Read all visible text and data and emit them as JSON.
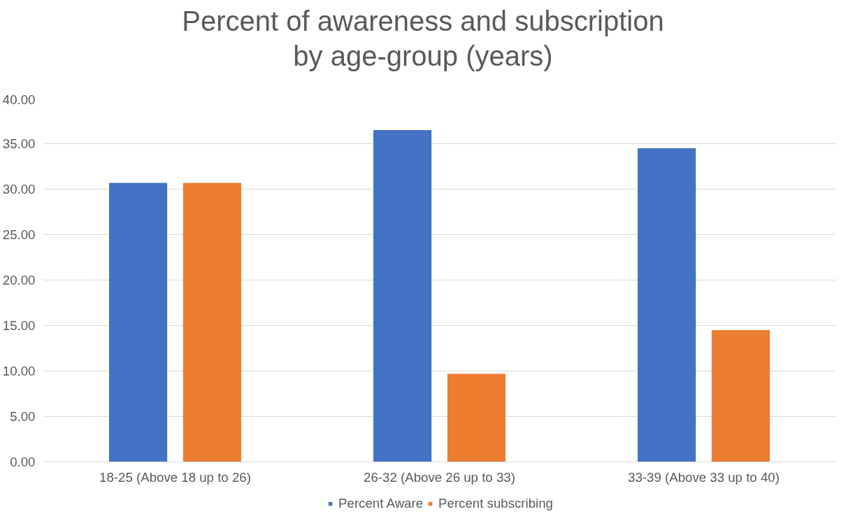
{
  "chart_data": {
    "type": "bar",
    "title": "Percent of awareness and subscription by age-group (years)",
    "categories": [
      "18-25 (Above 18 up to 26)",
      "26-32 (Above 26 up to 33)",
      "33-39 (Above 33 up to 40)"
    ],
    "series": [
      {
        "name": "Percent Aware",
        "color": "#4472c4",
        "values": [
          30.7,
          36.5,
          34.5
        ]
      },
      {
        "name": "Percent subscribing",
        "color": "#ed7d31",
        "values": [
          30.7,
          9.7,
          14.5
        ]
      }
    ],
    "ylim": [
      0,
      40
    ],
    "yticks": [
      {
        "value": 0,
        "label": "0.00"
      },
      {
        "value": 5,
        "label": "5.00"
      },
      {
        "value": 10,
        "label": "10.00"
      },
      {
        "value": 15,
        "label": "15.00"
      },
      {
        "value": 20,
        "label": "20.00"
      },
      {
        "value": 25,
        "label": "25.00"
      },
      {
        "value": 30,
        "label": "30.00"
      },
      {
        "value": 35,
        "label": "35.00"
      },
      {
        "value": 40,
        "label": "40.00"
      }
    ],
    "grid": "y",
    "legend": "bottom"
  }
}
